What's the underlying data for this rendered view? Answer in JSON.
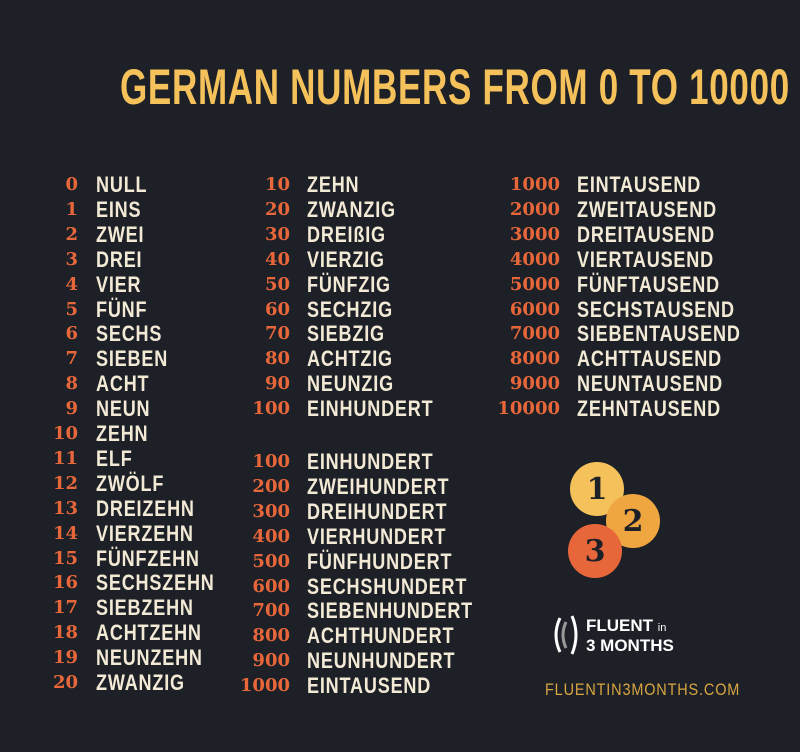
{
  "title": "GERMAN NUMBERS FROM 0 TO 10000",
  "colors": {
    "background": "#1e2028",
    "title": "#f5c15a",
    "number": "#e8673a",
    "word": "#f3ead6",
    "coin1": "#f5c15a",
    "coin2": "#f0a640",
    "coin3": "#e8673a"
  },
  "columns": [
    {
      "rows": [
        {
          "n": "0",
          "w": "NULL"
        },
        {
          "n": "1",
          "w": "EINS"
        },
        {
          "n": "2",
          "w": "ZWEI"
        },
        {
          "n": "3",
          "w": "DREI"
        },
        {
          "n": "4",
          "w": "VIER"
        },
        {
          "n": "5",
          "w": "FÜNF"
        },
        {
          "n": "6",
          "w": "SECHS"
        },
        {
          "n": "7",
          "w": "SIEBEN"
        },
        {
          "n": "8",
          "w": "ACHT"
        },
        {
          "n": "9",
          "w": "NEUN"
        },
        {
          "n": "10",
          "w": "ZEHN"
        },
        {
          "n": "11",
          "w": "ELF"
        },
        {
          "n": "12",
          "w": "ZWÖLF"
        },
        {
          "n": "13",
          "w": "DREIZEHN"
        },
        {
          "n": "14",
          "w": "VIERZEHN"
        },
        {
          "n": "15",
          "w": "FÜNFZEHN"
        },
        {
          "n": "16",
          "w": "SECHSZEHN"
        },
        {
          "n": "17",
          "w": "SIEBZEHN"
        },
        {
          "n": "18",
          "w": "ACHTZEHN"
        },
        {
          "n": "19",
          "w": "NEUNZEHN"
        },
        {
          "n": "20",
          "w": "ZWANZIG"
        }
      ]
    },
    {
      "rows": [
        {
          "n": "10",
          "w": "ZEHN"
        },
        {
          "n": "20",
          "w": "ZWANZIG"
        },
        {
          "n": "30",
          "w": "DREIßIG"
        },
        {
          "n": "40",
          "w": "VIERZIG"
        },
        {
          "n": "50",
          "w": "FÜNFZIG"
        },
        {
          "n": "60",
          "w": "SECHZIG"
        },
        {
          "n": "70",
          "w": "SIEBZIG"
        },
        {
          "n": "80",
          "w": "ACHTZIG"
        },
        {
          "n": "90",
          "w": "NEUNZIG"
        },
        {
          "n": "100",
          "w": "EINHUNDERT"
        }
      ]
    },
    {
      "rows": [
        {
          "n": "100",
          "w": "EINHUNDERT"
        },
        {
          "n": "200",
          "w": "ZWEIHUNDERT"
        },
        {
          "n": "300",
          "w": "DREIHUNDERT"
        },
        {
          "n": "400",
          "w": "VIERHUNDERT"
        },
        {
          "n": "500",
          "w": "FÜNFHUNDERT"
        },
        {
          "n": "600",
          "w": "SECHSHUNDERT"
        },
        {
          "n": "700",
          "w": "SIEBENHUNDERT"
        },
        {
          "n": "800",
          "w": "ACHTHUNDERT"
        },
        {
          "n": "900",
          "w": "NEUNHUNDERT"
        },
        {
          "n": "1000",
          "w": "EINTAUSEND"
        }
      ]
    },
    {
      "rows": [
        {
          "n": "1000",
          "w": "EINTAUSEND"
        },
        {
          "n": "2000",
          "w": "ZWEITAUSEND"
        },
        {
          "n": "3000",
          "w": "DREITAUSEND"
        },
        {
          "n": "4000",
          "w": "VIERTAUSEND"
        },
        {
          "n": "5000",
          "w": "FÜNFTAUSEND"
        },
        {
          "n": "6000",
          "w": "SECHSTAUSEND"
        },
        {
          "n": "7000",
          "w": "SIEBENTAUSEND"
        },
        {
          "n": "8000",
          "w": "ACHTTAUSEND"
        },
        {
          "n": "9000",
          "w": "NEUNTAUSEND"
        },
        {
          "n": "10000",
          "w": "ZEHNTAUSEND"
        }
      ]
    }
  ],
  "coins": [
    "1",
    "2",
    "3"
  ],
  "logo": {
    "line1": "FLUENT",
    "line1_small": "in",
    "line2": "3 MONTHS",
    "icon": "sound-waves-icon"
  },
  "url": "FLUENTIN3MONTHS.COM"
}
